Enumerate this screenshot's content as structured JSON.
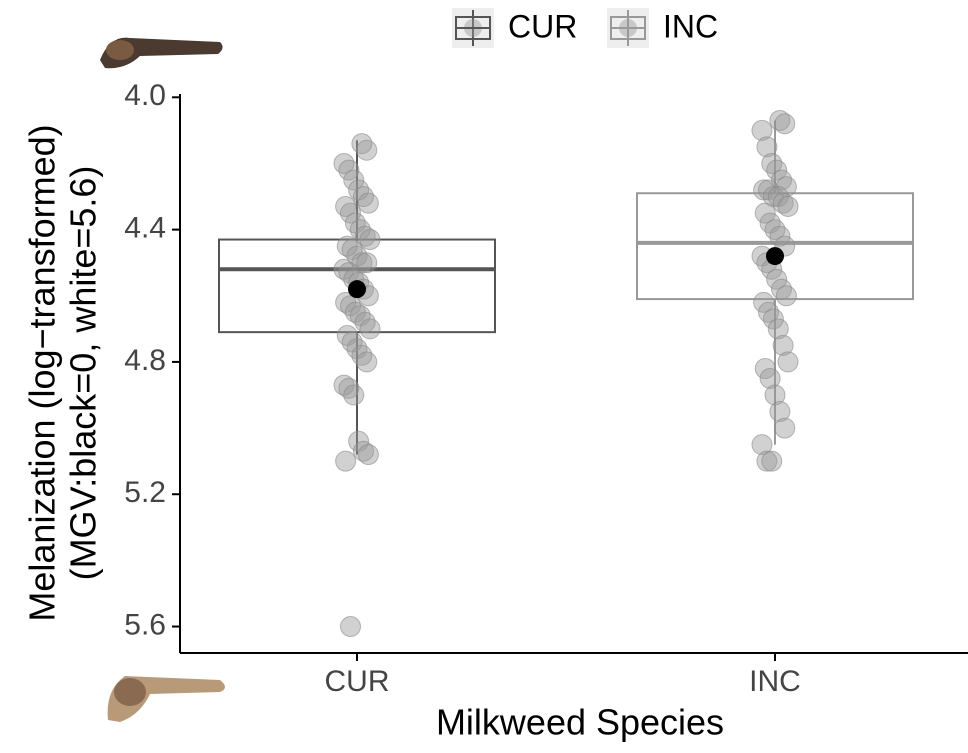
{
  "chart_data": {
    "type": "box",
    "x_label": "Milkweed Species",
    "y_label": [
      "Melanization (log−transformed)",
      "(MGV:black=0, white=5.6)"
    ],
    "categories": [
      "CUR",
      "INC"
    ],
    "y_reversed": true,
    "ylim": [
      3.99,
      5.68
    ],
    "yticks": [
      {
        "value": 4.0,
        "label": "4.0"
      },
      4.4,
      4.8,
      5.2,
      5.6
    ],
    "grid": false,
    "legend_position": "top",
    "boxes": [
      {
        "name": "CUR",
        "color": "#555555",
        "whisker_low": 4.13,
        "q1": 4.43,
        "median": 4.52,
        "q3": 4.71,
        "whisker_high": 5.08,
        "mean": 4.58,
        "points": [
          4.14,
          4.16,
          4.2,
          4.22,
          4.25,
          4.28,
          4.3,
          4.32,
          4.33,
          4.35,
          4.38,
          4.4,
          4.42,
          4.43,
          4.45,
          4.46,
          4.48,
          4.5,
          4.5,
          4.52,
          4.53,
          4.55,
          4.56,
          4.58,
          4.6,
          4.62,
          4.63,
          4.65,
          4.66,
          4.68,
          4.7,
          4.72,
          4.74,
          4.76,
          4.78,
          4.8,
          4.87,
          4.88,
          4.9,
          5.04,
          5.07,
          5.08,
          5.1,
          5.6
        ]
      },
      {
        "name": "INC",
        "color": "#999999",
        "whisker_low": 4.07,
        "q1": 4.29,
        "median": 4.44,
        "q3": 4.61,
        "whisker_high": 5.05,
        "mean": 4.48,
        "points": [
          4.07,
          4.08,
          4.1,
          4.15,
          4.2,
          4.22,
          4.25,
          4.27,
          4.28,
          4.28,
          4.3,
          4.3,
          4.32,
          4.33,
          4.35,
          4.38,
          4.4,
          4.42,
          4.45,
          4.48,
          4.5,
          4.52,
          4.55,
          4.58,
          4.6,
          4.62,
          4.65,
          4.67,
          4.7,
          4.75,
          4.8,
          4.82,
          4.85,
          4.9,
          4.95,
          5.0,
          5.05,
          5.1,
          5.1
        ]
      }
    ]
  }
}
